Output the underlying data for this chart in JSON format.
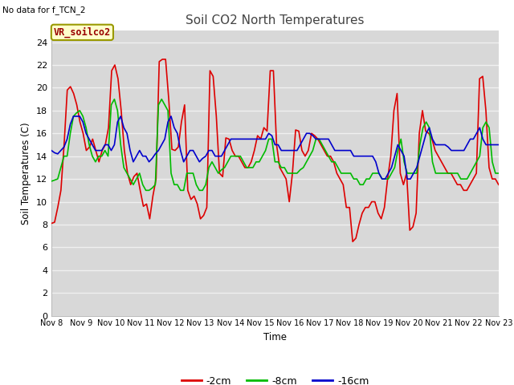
{
  "title": "Soil CO2 North Temperatures",
  "ylabel": "Soil Temperatures (C)",
  "xlabel": "Time",
  "no_data_text": "No data for f_TCN_2",
  "legend_label": "VR_soilco2",
  "ylim": [
    0,
    25
  ],
  "yticks": [
    0,
    2,
    4,
    6,
    8,
    10,
    12,
    14,
    16,
    18,
    20,
    22,
    24
  ],
  "xtick_labels": [
    "Nov 8",
    "Nov 9",
    "Nov 10",
    "Nov 11",
    "Nov 12",
    "Nov 13",
    "Nov 14",
    "Nov 15",
    "Nov 16",
    "Nov 17",
    "Nov 18",
    "Nov 19",
    "Nov 20",
    "Nov 21",
    "Nov 22",
    "Nov 23"
  ],
  "line_colors": [
    "#dd0000",
    "#00bb00",
    "#0000cc"
  ],
  "line_labels": [
    "-2cm",
    "-8cm",
    "-16cm"
  ],
  "outer_bg_color": "#ffffff",
  "plot_bg_color": "#d8d8d8",
  "grid_color": "#f0f0f0",
  "title_color": "#444444",
  "annotation_box_facecolor": "#ffffcc",
  "annotation_text_color": "#990000",
  "annotation_edge_color": "#999900",
  "red_data": [
    8.1,
    8.2,
    9.5,
    11.0,
    15.0,
    19.8,
    20.1,
    19.5,
    18.5,
    17.0,
    16.0,
    14.5,
    14.8,
    15.5,
    14.5,
    13.5,
    14.5,
    15.0,
    16.5,
    21.5,
    22.0,
    20.8,
    18.0,
    14.5,
    12.5,
    11.5,
    12.2,
    12.5,
    11.0,
    9.6,
    9.8,
    8.5,
    10.5,
    12.0,
    22.3,
    22.5,
    22.5,
    19.0,
    14.6,
    14.5,
    14.8,
    17.0,
    18.5,
    11.0,
    10.2,
    10.5,
    9.8,
    8.5,
    8.8,
    9.5,
    21.5,
    21.0,
    17.5,
    12.5,
    12.2,
    15.6,
    15.5,
    14.5,
    14.0,
    14.0,
    13.5,
    13.0,
    13.0,
    13.5,
    14.5,
    15.8,
    15.5,
    16.5,
    16.2,
    21.5,
    21.5,
    15.0,
    13.0,
    12.5,
    12.0,
    10.0,
    12.5,
    16.3,
    16.2,
    14.5,
    14.0,
    14.5,
    16.0,
    15.8,
    15.5,
    15.0,
    14.5,
    14.0,
    14.0,
    13.5,
    12.5,
    12.0,
    11.5,
    9.5,
    9.5,
    6.5,
    6.8,
    8.0,
    9.0,
    9.5,
    9.5,
    10.0,
    10.0,
    9.0,
    8.5,
    9.5,
    12.0,
    14.0,
    18.0,
    19.5,
    12.5,
    11.5,
    12.5,
    7.5,
    7.8,
    9.0,
    16.0,
    18.0,
    16.2,
    16.0,
    15.5,
    14.5,
    14.0,
    13.5,
    13.0,
    12.5,
    12.5,
    12.0,
    11.5,
    11.5,
    11.0,
    11.0,
    11.5,
    12.0,
    12.5,
    20.8,
    21.0,
    18.0,
    13.0,
    12.0,
    12.0,
    11.5
  ],
  "green_data": [
    11.8,
    11.9,
    12.0,
    13.0,
    14.0,
    14.0,
    16.0,
    17.5,
    17.8,
    18.0,
    17.5,
    16.5,
    15.0,
    14.0,
    13.5,
    14.0,
    14.0,
    14.5,
    14.0,
    18.5,
    19.0,
    18.0,
    15.0,
    13.0,
    12.5,
    12.0,
    11.5,
    12.0,
    12.5,
    11.5,
    11.0,
    11.0,
    11.2,
    11.5,
    18.5,
    19.0,
    18.5,
    18.0,
    12.5,
    11.5,
    11.5,
    11.0,
    11.0,
    12.5,
    12.5,
    12.5,
    11.5,
    11.0,
    11.0,
    11.5,
    13.0,
    13.5,
    13.0,
    12.5,
    12.8,
    13.0,
    13.5,
    14.0,
    14.0,
    14.0,
    14.0,
    13.5,
    13.0,
    13.0,
    13.0,
    13.5,
    13.5,
    14.0,
    14.5,
    15.5,
    15.5,
    13.5,
    13.5,
    13.0,
    13.0,
    12.5,
    12.5,
    12.5,
    12.5,
    12.8,
    13.0,
    13.5,
    14.0,
    14.5,
    15.5,
    15.5,
    15.0,
    14.5,
    14.0,
    13.5,
    13.5,
    13.0,
    12.5,
    12.5,
    12.5,
    12.5,
    12.0,
    12.0,
    11.5,
    11.5,
    12.0,
    12.0,
    12.5,
    12.5,
    12.5,
    12.0,
    12.0,
    12.0,
    12.5,
    13.0,
    14.5,
    15.5,
    13.5,
    12.5,
    12.5,
    12.5,
    12.5,
    15.0,
    16.5,
    17.0,
    16.5,
    13.5,
    12.5,
    12.5,
    12.5,
    12.5,
    12.5,
    12.5,
    12.5,
    12.5,
    12.0,
    12.0,
    12.0,
    12.5,
    13.0,
    13.5,
    14.0,
    16.5,
    17.0,
    16.5,
    13.5,
    12.5,
    12.5
  ],
  "blue_data": [
    14.5,
    14.3,
    14.2,
    14.5,
    14.8,
    15.5,
    16.8,
    17.5,
    17.5,
    17.5,
    17.0,
    16.0,
    15.5,
    15.0,
    14.5,
    14.5,
    14.5,
    15.0,
    15.0,
    14.5,
    15.0,
    17.0,
    17.5,
    16.5,
    16.0,
    14.5,
    13.5,
    14.0,
    14.5,
    14.0,
    14.0,
    13.5,
    13.8,
    14.2,
    14.5,
    15.0,
    15.5,
    17.0,
    17.5,
    16.5,
    16.0,
    14.5,
    13.5,
    14.0,
    14.5,
    14.5,
    14.0,
    13.5,
    13.8,
    14.0,
    14.5,
    14.5,
    14.0,
    14.0,
    14.0,
    14.5,
    15.0,
    15.5,
    15.5,
    15.5,
    15.5,
    15.5,
    15.5,
    15.5,
    15.5,
    15.5,
    15.5,
    15.5,
    15.5,
    16.0,
    15.8,
    15.0,
    15.0,
    14.5,
    14.5,
    14.5,
    14.5,
    14.5,
    14.5,
    15.0,
    15.5,
    16.0,
    16.0,
    15.8,
    15.5,
    15.5,
    15.5,
    15.5,
    15.5,
    15.0,
    14.5,
    14.5,
    14.5,
    14.5,
    14.5,
    14.5,
    14.0,
    14.0,
    14.0,
    14.0,
    14.0,
    14.0,
    14.0,
    13.5,
    12.5,
    12.0,
    12.0,
    12.5,
    13.0,
    14.0,
    15.0,
    14.5,
    14.0,
    12.0,
    12.0,
    12.5,
    13.0,
    14.0,
    15.0,
    16.0,
    16.5,
    15.5,
    15.0,
    15.0,
    15.0,
    15.0,
    14.8,
    14.5,
    14.5,
    14.5,
    14.5,
    14.5,
    15.0,
    15.5,
    15.5,
    16.0,
    16.5,
    15.5,
    15.0,
    15.0,
    15.0,
    15.0,
    15.0
  ]
}
